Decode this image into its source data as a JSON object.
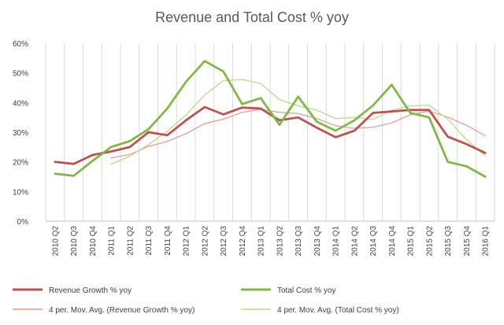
{
  "chart_data": {
    "type": "line",
    "title": "Revenue and Total Cost % yoy",
    "ylim": [
      0,
      60
    ],
    "yticks": [
      "0%",
      "10%",
      "20%",
      "30%",
      "40%",
      "50%",
      "60%"
    ],
    "categories": [
      "2010 Q2",
      "2010 Q3",
      "2010 Q4",
      "2011 Q1",
      "2011 Q2",
      "2011 Q3",
      "2011 Q4",
      "2012 Q1",
      "2012 Q2",
      "2012 Q3",
      "2012 Q4",
      "2013 Q1",
      "2013 Q2",
      "2013 Q3",
      "2013 Q4",
      "2014 Q1",
      "2014 Q2",
      "2014 Q3",
      "2014 Q4",
      "2015 Q1",
      "2015 Q2",
      "2015 Q3",
      "2015 Q4",
      "2016 Q1"
    ],
    "series": [
      {
        "name": "Revenue Growth % yoy",
        "color": "#c0504d",
        "style": "thick",
        "values": [
          20,
          19.3,
          22.3,
          23.5,
          25,
          30,
          29,
          34,
          38.5,
          36,
          38.3,
          38,
          34,
          35,
          31.5,
          28.3,
          30.5,
          36.5,
          37,
          37.5,
          37.5,
          28.5,
          26,
          23
        ]
      },
      {
        "name": "Total Cost % yoy",
        "color": "#7fb843",
        "style": "thick",
        "values": [
          16,
          15.3,
          20.3,
          25,
          27,
          31,
          38,
          47,
          54,
          50.5,
          39.5,
          41.5,
          32.5,
          42,
          33.5,
          30.5,
          34,
          39,
          46,
          36.5,
          35,
          20,
          18.5,
          15
        ]
      },
      {
        "name": "4 per. Mov. Avg. (Revenue Growth % yoy)",
        "color": "#e59a94",
        "style": "thin",
        "start": 3,
        "values": [
          null,
          null,
          null,
          21.3,
          22.5,
          25.2,
          26.9,
          29.5,
          32.9,
          34.4,
          36.7,
          37.7,
          36.7,
          36.3,
          34.6,
          32.2,
          31.3,
          31.7,
          33.1,
          35.9,
          37.1,
          35.1,
          32.3,
          28.8
        ]
      },
      {
        "name": "4 per. Mov. Avg. (Total Cost % yoy)",
        "color": "#b6d98a",
        "style": "thin",
        "start": 3,
        "values": [
          null,
          null,
          null,
          19.2,
          21.9,
          25.8,
          30.3,
          35.8,
          42.5,
          47.4,
          47.8,
          46.4,
          41,
          38.9,
          37.4,
          34.6,
          35,
          34.3,
          37.4,
          38.9,
          39.1,
          34.4,
          27.5,
          22.1
        ]
      }
    ],
    "legend": {
      "position": "bottom",
      "items": [
        "Revenue Growth % yoy",
        "Total Cost % yoy",
        "4 per. Mov. Avg. (Revenue Growth % yoy)",
        "4 per. Mov. Avg. (Total Cost % yoy)"
      ]
    },
    "grid": "vertical"
  }
}
